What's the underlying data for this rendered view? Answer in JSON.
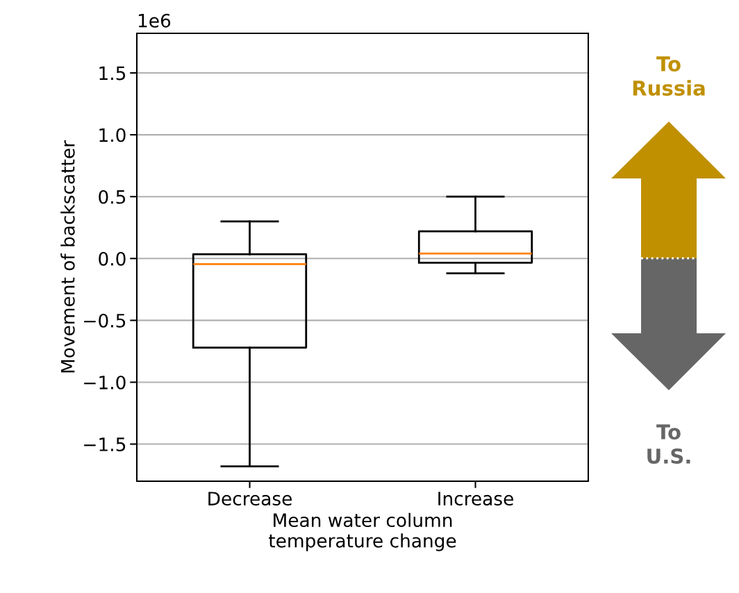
{
  "chart_data": {
    "type": "box",
    "categories": [
      "Decrease",
      "Increase"
    ],
    "boxes": [
      {
        "low": -1.68,
        "q1": -0.72,
        "median": -0.045,
        "q3": 0.034,
        "high": 0.3
      },
      {
        "low": -0.12,
        "q1": -0.034,
        "median": 0.04,
        "q3": 0.22,
        "high": 0.5
      }
    ],
    "xlabel": "Mean water column\ntemperature change",
    "ylabel": "Movement of backscatter",
    "ylim": [
      -1.8,
      1.82
    ],
    "yticks": [
      {
        "value": -1.5,
        "label": "−1.5"
      },
      {
        "value": -1.0,
        "label": "−1.0"
      },
      {
        "value": -0.5,
        "label": "−0.5"
      },
      {
        "value": 0.0,
        "label": "0.0"
      },
      {
        "value": 0.5,
        "label": "0.5"
      },
      {
        "value": 1.0,
        "label": "1.0"
      },
      {
        "value": 1.5,
        "label": "1.5"
      }
    ],
    "grid": "y",
    "annotations": [
      "1e6",
      "To\nRussia",
      "To\nU.S."
    ]
  }
}
